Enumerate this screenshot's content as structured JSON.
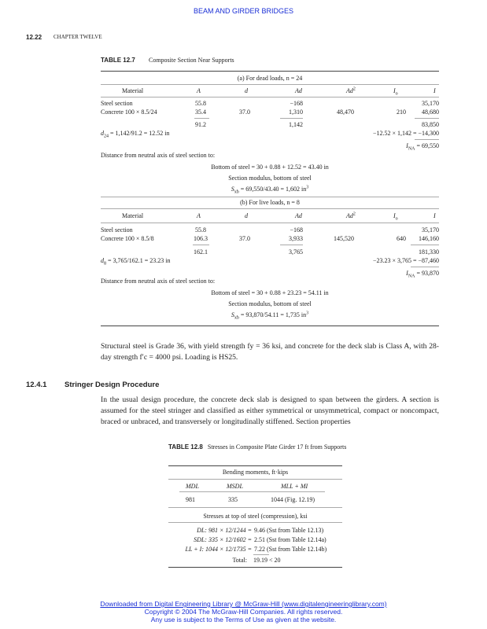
{
  "running_head": "BEAM AND GIRDER BRIDGES",
  "page_number": "12.22",
  "chapter": "CHAPTER TWELVE",
  "table_12_7": {
    "label": "TABLE 12.7",
    "caption": "Composite Section Near Supports",
    "headers": [
      "Material",
      "A",
      "d",
      "Ad",
      "Ad",
      "Io",
      "I"
    ],
    "part_a": {
      "title": "(a) For dead loads, n = 24",
      "rows": [
        [
          "Steel section",
          "55.8",
          "",
          "−168",
          "",
          "",
          "35,170"
        ],
        [
          "Concrete 100 × 8.5/24",
          "35.4",
          "37.0",
          "1,310",
          "48,470",
          "210",
          "48,680"
        ]
      ],
      "totals": [
        "91.2",
        "1,142",
        "83,850"
      ],
      "d_eq": "= 1,142/91.2 = 12.52 in",
      "d_sym": "d",
      "d_sub": "24",
      "correction": "−12.52 × 1,142 = −14,300",
      "ina": "= 69,550",
      "distance": "Distance from neutral axis of steel section to:",
      "bottom": "Bottom of steel = 30 + 0.88 + 12.52 = 43.40 in",
      "modulus": "Section modulus, bottom of steel",
      "sxb": "= 69,550/43.40 = 1,602 in"
    },
    "part_b": {
      "title": "(b) For live loads, n = 8",
      "rows": [
        [
          "Steel section",
          "55.8",
          "",
          "−168",
          "",
          "",
          "35,170"
        ],
        [
          "Concrete 100 × 8.5/8",
          "106.3",
          "37.0",
          "3,933",
          "145,520",
          "640",
          "146,160"
        ]
      ],
      "totals": [
        "162.1",
        "3,765",
        "181,330"
      ],
      "d_eq": "= 3,765/162.1 = 23.23 in",
      "d_sym": "d",
      "d_sub": "8",
      "correction": "−23.23 × 3,765 = −87,460",
      "ina": "= 93,870",
      "distance": "Distance from neutral axis of steel section to:",
      "bottom": "Bottom of steel = 30 + 0.88 + 23.23 = 54.11 in",
      "modulus": "Section modulus, bottom of steel",
      "sxb": "= 93,870/54.11 = 1,735 in"
    }
  },
  "paragraph1": "Structural steel is Grade 36, with yield strength fy = 36 ksi, and concrete for the deck slab is Class A, with 28-day strength f′c = 4000 psi. Loading is HS25.",
  "section": {
    "number": "12.4.1",
    "title": "Stringer Design Procedure"
  },
  "paragraph2": "In the usual design procedure, the concrete deck slab is designed to span between the girders. A section is assumed for the steel stringer and classified as either symmetrical or unsymmetrical, compact or noncompact, braced or unbraced, and transversely or longitudinally stiffened. Section properties",
  "table_12_8": {
    "label": "TABLE 12.8",
    "caption": "Stresses in Composite Plate Girder 17 ft from Supports",
    "moments_title": "Bending moments, ft·kips",
    "headers": [
      "MDL",
      "MSDL",
      "MLL + MI"
    ],
    "values": [
      "981",
      "335",
      "1044 (Fig. 12.19)"
    ],
    "stress_title": "Stresses at top of steel (compression), ksi",
    "stress_rows": [
      {
        "label": "DL: 981 × 12/1244 =",
        "value": "9.46 (Sst from Table 12.13)"
      },
      {
        "label": "SDL: 335 × 12/1602 =",
        "value": "2.51 (Sst from Table 12.14a)"
      },
      {
        "label": "LL + I: 1044 × 12/1735 =",
        "value": "7.22 (Sst from Table 12.14b)"
      }
    ],
    "total_label": "Total:",
    "total_value": "19.19 < 20"
  },
  "footer": [
    "Downloaded from Digital Engineering Library @ McGraw-Hill (www.digitalengineeringlibrary.com)",
    "Copyright © 2004 The McGraw-Hill Companies. All rights reserved.",
    "Any use is subject to the Terms of Use as given at the website."
  ]
}
